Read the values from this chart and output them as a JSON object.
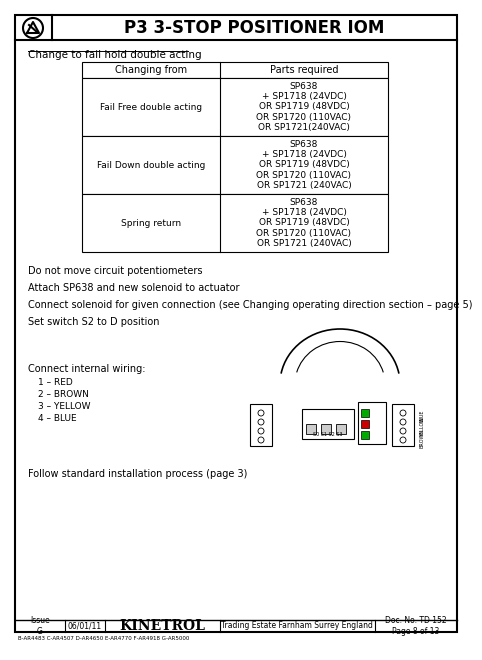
{
  "title": "P3 3-STOP POSITIONER IOM",
  "section_title": "Change to fail hold double acting",
  "table_header": [
    "Changing from",
    "Parts required"
  ],
  "table_rows": [
    [
      "Fail Free double acting",
      "SP638\n+ SP1718 (24VDC)\nOR SP1719 (48VDC)\nOR SP1720 (110VAC)\nOR SP1721(240VAC)"
    ],
    [
      "Fail Down double acting",
      "SP638\n+ SP1718 (24VDC)\nOR SP1719 (48VDC)\nOR SP1720 (110VAC)\nOR SP1721 (240VAC)"
    ],
    [
      "Spring return",
      "SP638\n+ SP1718 (24VDC)\nOR SP1719 (48VDC)\nOR SP1720 (110VAC)\nOR SP1721 (240VAC)"
    ]
  ],
  "instructions": [
    "Do not move circuit potentiometers",
    "Attach SP638 and new solenoid to actuator",
    "Connect solenoid for given connection (see Changing operating direction section – page 5)",
    "Set switch S2 to D position"
  ],
  "wiring_title": "Connect internal wiring:",
  "wiring_items": [
    "1 – RED",
    "2 – BROWN",
    "3 – YELLOW",
    "4 – BLUE"
  ],
  "follow_text": "Follow standard installation process (page 3)",
  "footer_issue": "Issue\nG",
  "footer_date": "06/01/11",
  "footer_company": "KINETROL",
  "footer_address": "Trading Estate Farnham Surrey England",
  "footer_doc": "Doc. No. TD 152\nPage 8 of 13",
  "footer_refs": "B-AR4483 C-AR4507 D-AR4650 E-AR4770 F-AR4918 G-AR5000",
  "bg_color": "#ffffff"
}
